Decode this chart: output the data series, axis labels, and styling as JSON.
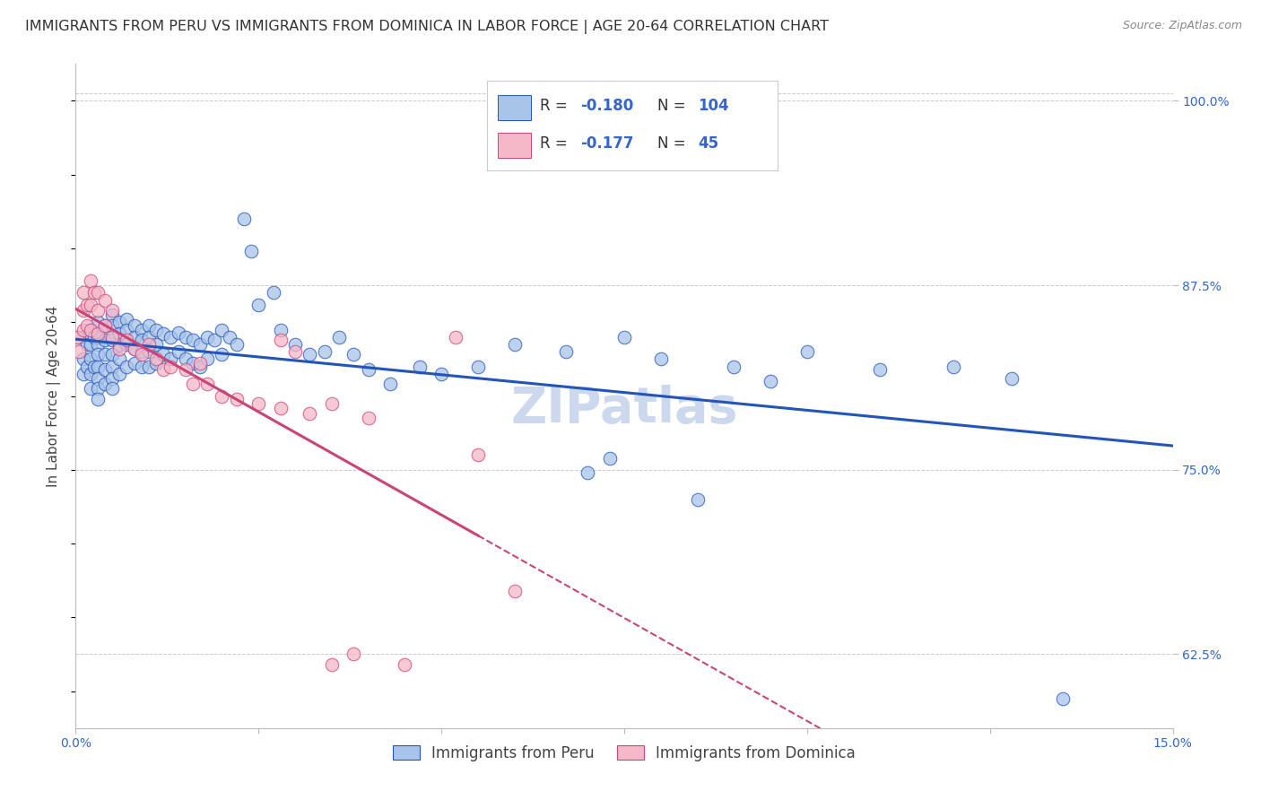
{
  "title": "IMMIGRANTS FROM PERU VS IMMIGRANTS FROM DOMINICA IN LABOR FORCE | AGE 20-64 CORRELATION CHART",
  "source": "Source: ZipAtlas.com",
  "ylabel": "In Labor Force | Age 20-64",
  "xlim": [
    0.0,
    0.15
  ],
  "ylim": [
    0.575,
    1.025
  ],
  "xticks": [
    0.0,
    0.025,
    0.05,
    0.075,
    0.1,
    0.125,
    0.15
  ],
  "xticklabels": [
    "0.0%",
    "",
    "",
    "",
    "",
    "",
    "15.0%"
  ],
  "yticks_right": [
    0.625,
    0.75,
    0.875,
    1.0
  ],
  "ytick_labels_right": [
    "62.5%",
    "75.0%",
    "87.5%",
    "100.0%"
  ],
  "legend_R1": "-0.180",
  "legend_N1": "104",
  "legend_R2": "-0.177",
  "legend_N2": "45",
  "label_peru": "Immigrants from Peru",
  "label_dominica": "Immigrants from Dominica",
  "color_peru": "#a8c4e8",
  "color_dominica": "#f4b8c8",
  "line_color_peru": "#2255bb",
  "line_color_dominica": "#cc4477",
  "watermark": "ZIPatlas",
  "peru_x": [
    0.0005,
    0.001,
    0.001,
    0.0015,
    0.0015,
    0.002,
    0.002,
    0.002,
    0.002,
    0.002,
    0.0025,
    0.0025,
    0.003,
    0.003,
    0.003,
    0.003,
    0.003,
    0.003,
    0.003,
    0.003,
    0.004,
    0.004,
    0.004,
    0.004,
    0.004,
    0.005,
    0.005,
    0.005,
    0.005,
    0.005,
    0.005,
    0.005,
    0.006,
    0.006,
    0.006,
    0.006,
    0.006,
    0.007,
    0.007,
    0.007,
    0.007,
    0.008,
    0.008,
    0.008,
    0.008,
    0.009,
    0.009,
    0.009,
    0.009,
    0.01,
    0.01,
    0.01,
    0.01,
    0.011,
    0.011,
    0.011,
    0.012,
    0.012,
    0.013,
    0.013,
    0.014,
    0.014,
    0.015,
    0.015,
    0.016,
    0.016,
    0.017,
    0.017,
    0.018,
    0.018,
    0.019,
    0.02,
    0.02,
    0.021,
    0.022,
    0.023,
    0.024,
    0.025,
    0.027,
    0.028,
    0.03,
    0.032,
    0.034,
    0.036,
    0.038,
    0.04,
    0.043,
    0.047,
    0.05,
    0.055,
    0.06,
    0.067,
    0.075,
    0.08,
    0.09,
    0.095,
    0.1,
    0.11,
    0.12,
    0.128,
    0.07,
    0.073,
    0.085,
    0.135
  ],
  "peru_y": [
    0.84,
    0.825,
    0.815,
    0.835,
    0.82,
    0.845,
    0.835,
    0.825,
    0.815,
    0.805,
    0.84,
    0.82,
    0.85,
    0.84,
    0.835,
    0.828,
    0.82,
    0.812,
    0.805,
    0.798,
    0.848,
    0.838,
    0.828,
    0.818,
    0.808,
    0.855,
    0.848,
    0.838,
    0.828,
    0.82,
    0.812,
    0.805,
    0.85,
    0.842,
    0.835,
    0.825,
    0.815,
    0.852,
    0.845,
    0.835,
    0.82,
    0.848,
    0.84,
    0.832,
    0.822,
    0.845,
    0.838,
    0.83,
    0.82,
    0.848,
    0.84,
    0.83,
    0.82,
    0.845,
    0.835,
    0.822,
    0.842,
    0.828,
    0.84,
    0.825,
    0.843,
    0.83,
    0.84,
    0.825,
    0.838,
    0.822,
    0.835,
    0.82,
    0.84,
    0.825,
    0.838,
    0.845,
    0.828,
    0.84,
    0.835,
    0.92,
    0.898,
    0.862,
    0.87,
    0.845,
    0.835,
    0.828,
    0.83,
    0.84,
    0.828,
    0.818,
    0.808,
    0.82,
    0.815,
    0.82,
    0.835,
    0.83,
    0.84,
    0.825,
    0.82,
    0.81,
    0.83,
    0.818,
    0.82,
    0.812,
    0.748,
    0.758,
    0.73,
    0.595
  ],
  "dominica_x": [
    0.0002,
    0.0005,
    0.001,
    0.001,
    0.001,
    0.0015,
    0.0015,
    0.002,
    0.002,
    0.002,
    0.0025,
    0.003,
    0.003,
    0.003,
    0.004,
    0.004,
    0.005,
    0.005,
    0.006,
    0.007,
    0.008,
    0.009,
    0.01,
    0.011,
    0.012,
    0.013,
    0.015,
    0.016,
    0.017,
    0.018,
    0.02,
    0.022,
    0.025,
    0.028,
    0.032,
    0.035,
    0.038,
    0.04,
    0.045,
    0.052,
    0.028,
    0.03,
    0.035,
    0.055,
    0.06
  ],
  "dominica_y": [
    0.84,
    0.83,
    0.87,
    0.858,
    0.845,
    0.862,
    0.848,
    0.878,
    0.862,
    0.845,
    0.87,
    0.87,
    0.858,
    0.842,
    0.865,
    0.848,
    0.858,
    0.84,
    0.832,
    0.838,
    0.832,
    0.828,
    0.835,
    0.825,
    0.818,
    0.82,
    0.818,
    0.808,
    0.822,
    0.808,
    0.8,
    0.798,
    0.795,
    0.792,
    0.788,
    0.795,
    0.625,
    0.785,
    0.618,
    0.84,
    0.838,
    0.83,
    0.618,
    0.76,
    0.668
  ],
  "title_fontsize": 11.5,
  "axis_label_fontsize": 11,
  "tick_fontsize": 10,
  "legend_fontsize": 12,
  "watermark_fontsize": 40,
  "watermark_color": "#ccd8ee",
  "background_color": "#ffffff",
  "grid_color": "#cccccc"
}
